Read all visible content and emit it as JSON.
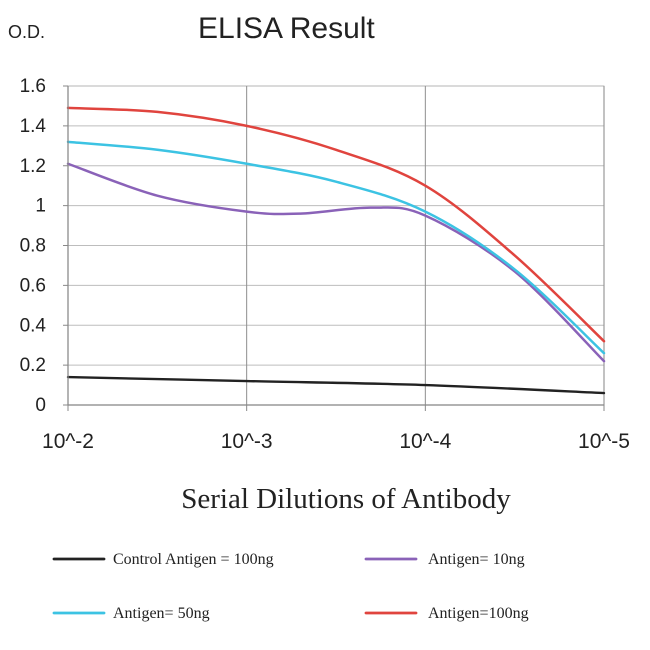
{
  "chart_data": {
    "type": "line",
    "title": "ELISA Result",
    "ylabel": "O.D.",
    "xlabel": "Serial Dilutions of Antibody",
    "x_ticks": [
      "10^-2",
      "10^-3",
      "10^-4",
      "10^-5"
    ],
    "y_ticks": [
      "0",
      "0.2",
      "0.4",
      "0.6",
      "0.8",
      "1",
      "1.2",
      "1.4",
      "1.6"
    ],
    "ylim": [
      0,
      1.6
    ],
    "grid": true,
    "legend_position": "bottom",
    "series": [
      {
        "name": "Control Antigen = 100ng",
        "color": "#222222",
        "points": [
          [
            0,
            0.14
          ],
          [
            1,
            0.12
          ],
          [
            2,
            0.1
          ],
          [
            3,
            0.06
          ]
        ]
      },
      {
        "name": "Antigen= 10ng",
        "color": "#8a62b8",
        "points": [
          [
            0,
            1.21
          ],
          [
            0.5,
            1.05
          ],
          [
            1,
            0.97
          ],
          [
            1.3,
            0.96
          ],
          [
            1.7,
            0.99
          ],
          [
            2,
            0.95
          ],
          [
            2.5,
            0.67
          ],
          [
            3,
            0.22
          ]
        ]
      },
      {
        "name": "Antigen= 50ng",
        "color": "#3cc3e3",
        "points": [
          [
            0,
            1.32
          ],
          [
            0.5,
            1.28
          ],
          [
            1,
            1.21
          ],
          [
            1.5,
            1.12
          ],
          [
            2,
            0.97
          ],
          [
            2.5,
            0.68
          ],
          [
            3,
            0.26
          ]
        ]
      },
      {
        "name": "Antigen=100ng",
        "color": "#e0443e",
        "points": [
          [
            0,
            1.49
          ],
          [
            0.5,
            1.47
          ],
          [
            1,
            1.4
          ],
          [
            1.5,
            1.28
          ],
          [
            2,
            1.1
          ],
          [
            2.5,
            0.75
          ],
          [
            3,
            0.32
          ]
        ]
      }
    ]
  }
}
